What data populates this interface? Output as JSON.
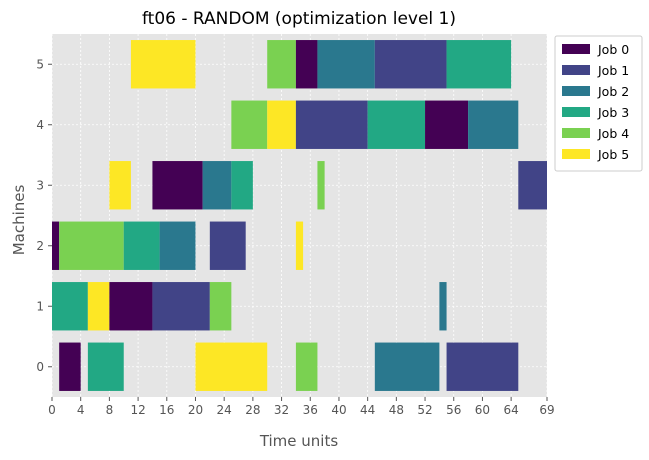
{
  "chart_data": {
    "type": "gantt",
    "title": "ft06 - RANDOM (optimization level 1)",
    "xlabel": "Time units",
    "ylabel": "Machines",
    "xlim": [
      0,
      69
    ],
    "x_ticks": [
      "0",
      "4",
      "8",
      "12",
      "16",
      "20",
      "24",
      "28",
      "32",
      "36",
      "40",
      "44",
      "48",
      "52",
      "56",
      "60",
      "64",
      "69"
    ],
    "x_tick_values": [
      0,
      4,
      8,
      12,
      16,
      20,
      24,
      28,
      32,
      36,
      40,
      44,
      48,
      52,
      56,
      60,
      64,
      69
    ],
    "machines": [
      "0",
      "1",
      "2",
      "3",
      "4",
      "5"
    ],
    "grid": true,
    "legend_position": "upper-right-outside",
    "jobs": [
      {
        "name": "Job 0",
        "color": "#440154"
      },
      {
        "name": "Job 1",
        "color": "#414487"
      },
      {
        "name": "Job 2",
        "color": "#2a788e"
      },
      {
        "name": "Job 3",
        "color": "#22a884"
      },
      {
        "name": "Job 4",
        "color": "#7ad151"
      },
      {
        "name": "Job 5",
        "color": "#fde725"
      }
    ],
    "tasks": [
      {
        "machine": 0,
        "job": 0,
        "start": 1,
        "end": 4
      },
      {
        "machine": 0,
        "job": 3,
        "start": 5,
        "end": 10
      },
      {
        "machine": 0,
        "job": 5,
        "start": 20,
        "end": 30
      },
      {
        "machine": 0,
        "job": 4,
        "start": 34,
        "end": 37
      },
      {
        "machine": 0,
        "job": 2,
        "start": 45,
        "end": 54
      },
      {
        "machine": 0,
        "job": 1,
        "start": 55,
        "end": 65
      },
      {
        "machine": 1,
        "job": 3,
        "start": 0,
        "end": 5
      },
      {
        "machine": 1,
        "job": 5,
        "start": 5,
        "end": 8
      },
      {
        "machine": 1,
        "job": 0,
        "start": 8,
        "end": 14
      },
      {
        "machine": 1,
        "job": 1,
        "start": 14,
        "end": 22
      },
      {
        "machine": 1,
        "job": 4,
        "start": 22,
        "end": 25
      },
      {
        "machine": 1,
        "job": 2,
        "start": 54,
        "end": 55
      },
      {
        "machine": 2,
        "job": 0,
        "start": 0,
        "end": 1
      },
      {
        "machine": 2,
        "job": 4,
        "start": 1,
        "end": 10
      },
      {
        "machine": 2,
        "job": 3,
        "start": 10,
        "end": 15
      },
      {
        "machine": 2,
        "job": 2,
        "start": 15,
        "end": 20
      },
      {
        "machine": 2,
        "job": 1,
        "start": 22,
        "end": 27
      },
      {
        "machine": 2,
        "job": 5,
        "start": 34,
        "end": 35
      },
      {
        "machine": 3,
        "job": 5,
        "start": 8,
        "end": 11
      },
      {
        "machine": 3,
        "job": 0,
        "start": 14,
        "end": 21
      },
      {
        "machine": 3,
        "job": 2,
        "start": 21,
        "end": 25
      },
      {
        "machine": 3,
        "job": 3,
        "start": 25,
        "end": 28
      },
      {
        "machine": 3,
        "job": 4,
        "start": 37,
        "end": 38
      },
      {
        "machine": 3,
        "job": 1,
        "start": 65,
        "end": 69
      },
      {
        "machine": 4,
        "job": 4,
        "start": 25,
        "end": 30
      },
      {
        "machine": 4,
        "job": 5,
        "start": 30,
        "end": 34
      },
      {
        "machine": 4,
        "job": 1,
        "start": 34,
        "end": 44
      },
      {
        "machine": 4,
        "job": 3,
        "start": 44,
        "end": 52
      },
      {
        "machine": 4,
        "job": 0,
        "start": 52,
        "end": 58
      },
      {
        "machine": 4,
        "job": 2,
        "start": 58,
        "end": 65
      },
      {
        "machine": 5,
        "job": 5,
        "start": 11,
        "end": 20
      },
      {
        "machine": 5,
        "job": 4,
        "start": 30,
        "end": 34
      },
      {
        "machine": 5,
        "job": 0,
        "start": 34,
        "end": 37
      },
      {
        "machine": 5,
        "job": 2,
        "start": 37,
        "end": 45
      },
      {
        "machine": 5,
        "job": 1,
        "start": 45,
        "end": 55
      },
      {
        "machine": 5,
        "job": 3,
        "start": 55,
        "end": 64
      }
    ]
  }
}
